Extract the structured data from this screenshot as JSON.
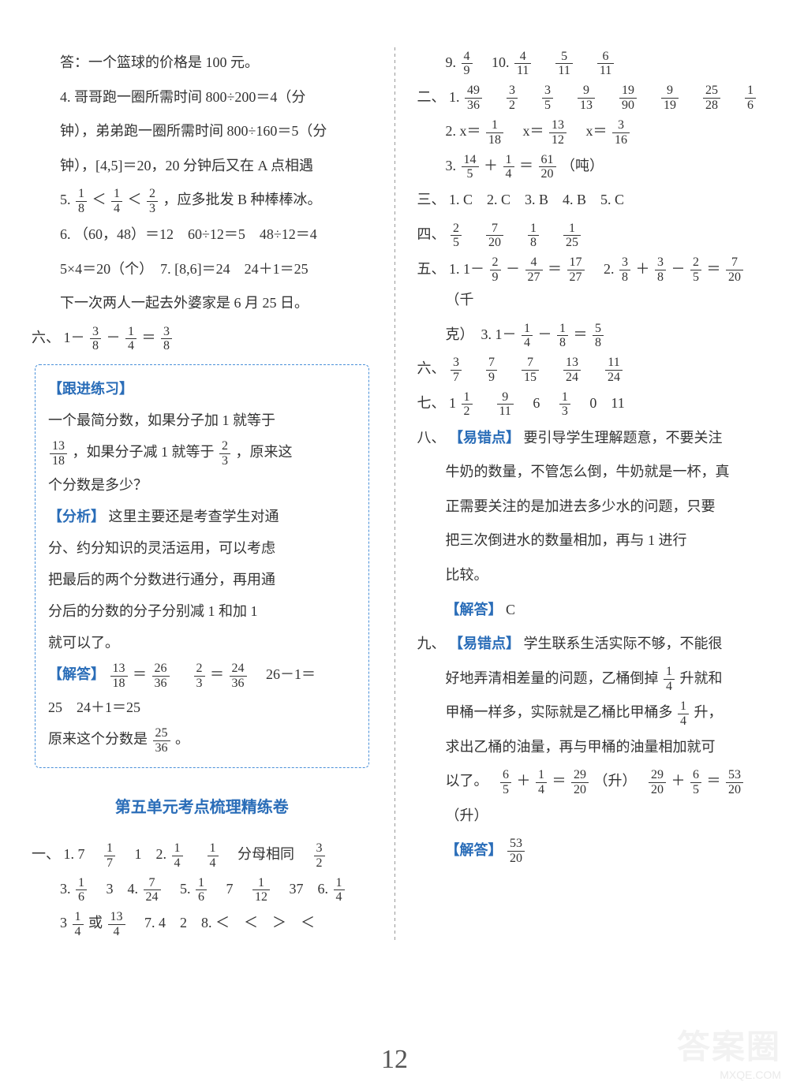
{
  "leftCol": {
    "l1": "答：一个篮球的价格是 100 元。",
    "l2a": "4. 哥哥跑一圈所需时间 800÷200＝4（分",
    "l2b": "钟），弟弟跑一圈所需时间 800÷160＝5（分",
    "l2c": "钟），[4,5]＝20，20 分钟后又在 A 点相遇",
    "l3a": "5. ",
    "l3b": "，应多批发 B 种棒棒冰。",
    "l4": "6. （60，48）＝12　60÷12＝5　48÷12＝4",
    "l5": "5×4＝20（个）　7. [8,6]＝24　24＋1＝25",
    "l6": "下一次两人一起去外婆家是 6 月 25 日。",
    "sec6label": "六、",
    "sec6a": "1－",
    "sec6b": "－",
    "sec6c": "＝",
    "box": {
      "t1": "【跟进练习】",
      "p1a": "一个最简分数，如果分子加 1 就等于",
      "p1b": "，如果分子减 1 就等于",
      "p1c": "，原来这",
      "p1d": "个分数是多少？",
      "t2": "【分析】",
      "p2a": "这里主要还是考查学生对通",
      "p2b": "分、约分知识的灵活运用，可以考虑",
      "p2c": "把最后的两个分数进行通分，再用通",
      "p2d": "分后的分数的分子分别减 1 和加 1",
      "p2e": "就可以了。",
      "t3": "【解答】",
      "p3a": "＝",
      "p3b": "　",
      "p3c": "＝",
      "p3d": "　26－1＝",
      "p3e": "25　24＋1＝25",
      "p3f": "原来这个分数是",
      "p3g": "。"
    },
    "unitTitle": "第五单元考点梳理精练卷",
    "sec1label": "一、",
    "a1_1": "1. 7　",
    "a1_1b": "　1　2. ",
    "a1_1c": "　",
    "a1_1d": "　分母相同　",
    "a1_2a": "3. ",
    "a1_2b": "　3　4. ",
    "a1_2c": "　5. ",
    "a1_2d": "　7　",
    "a1_2e": "　37　6. ",
    "a1_3a": "3",
    "a1_3b": "或",
    "a1_3c": "　7. 4　2　8. ＜　＜　＞　＜"
  },
  "rightCol": {
    "r1a": "9. ",
    "r1b": "　10. ",
    "r1c": "　",
    "r1d": "　",
    "sec2label": "二、",
    "r2_1a": "1. ",
    "r2_1sp": "　",
    "r2_2a": "2. x＝",
    "r2_2b": "　x＝",
    "r2_2c": "　x＝",
    "r2_3a": "3. ",
    "r2_3b": "＋",
    "r2_3c": "＝",
    "r2_3d": "（吨）",
    "sec3label": "三、",
    "r3": "1. C　2. C　3. B　4. B　5. C",
    "sec4label": "四、",
    "r4sp": "　",
    "sec5label": "五、",
    "r5_1a": "1. 1－",
    "r5_1b": "－",
    "r5_1c": "＝",
    "r5_1d": "　2. ",
    "r5_1e": "＋",
    "r5_1f": "－",
    "r5_1g": "＝",
    "r5_1h": "（千",
    "r5_2a": "克）　3. 1－",
    "r5_2b": "－",
    "r5_2c": "＝",
    "sec6rlabel": "六、",
    "r6sp": "　",
    "sec7label": "七、",
    "r7a": "1",
    "r7b": "　",
    "r7c": "　6　",
    "r7d": "　0　11",
    "sec8label": "八、",
    "r8t": "【易错点】",
    "r8_1": "要引导学生理解题意，不要关注",
    "r8_2": "牛奶的数量，不管怎么倒，牛奶就是一杯，真",
    "r8_3": "正需要关注的是加进去多少水的问题，只要",
    "r8_4": "把三次倒进水的数量相加，再与 1 进行",
    "r8_5": "比较。",
    "r8a": "【解答】",
    "r8ans": "C",
    "sec9label": "九、",
    "r9t": "【易错点】",
    "r9_1": "学生联系生活实际不够，不能很",
    "r9_2a": "好地弄清相差量的问题，乙桶倒掉",
    "r9_2b": "升就和",
    "r9_3a": "甲桶一样多，实际就是乙桶比甲桶多",
    "r9_3b": "升，",
    "r9_4": "求出乙桶的油量，再与甲桶的油量相加就可",
    "r9_5a": "以了。　",
    "r9_5b": "＋",
    "r9_5c": "＝",
    "r9_5d": "（升）　",
    "r9_5e": "＋",
    "r9_5f": "＝",
    "r9_6": "（升）",
    "r9a": "【解答】"
  },
  "pagenum": "12",
  "watermark_big": "答案圈",
  "watermark_url": "MXQE.COM"
}
